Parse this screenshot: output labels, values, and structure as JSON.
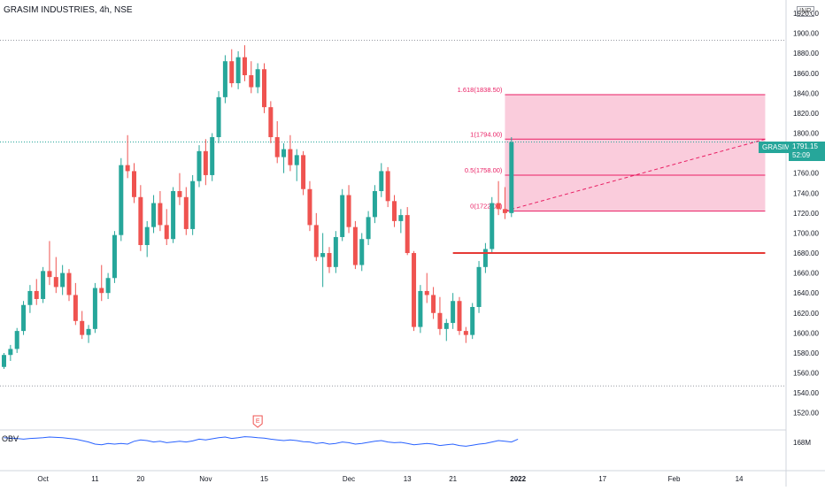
{
  "header": {
    "symbol_title": "GRASIM INDUSTRIES, 4h, NSE",
    "currency": "INR"
  },
  "colors": {
    "up": "#26a69a",
    "down": "#ef5350",
    "fib": "#e91e63",
    "fib_fill": "#f8bbd0",
    "obv": "#2962ff",
    "resistance": "#e53935"
  },
  "price_tag": {
    "ticker": "GRASIM",
    "price": "1791.15",
    "countdown": "52:09"
  },
  "indicator": {
    "label": "OBV",
    "value_label": "168M"
  },
  "event_marker": {
    "label": "E"
  },
  "chart_data": {
    "type": "candlestick",
    "title": "GRASIM INDUSTRIES, 4h, NSE",
    "ylim": [
      1510,
      1920
    ],
    "y_ticks": [
      1520,
      1540,
      1560,
      1580,
      1600,
      1620,
      1640,
      1660,
      1680,
      1700,
      1720,
      1740,
      1760,
      1780,
      1800,
      1820,
      1840,
      1860,
      1880,
      1900,
      1920
    ],
    "y_tick_labels": [
      "1520.00",
      "1540.00",
      "1560.00",
      "1580.00",
      "1600.00",
      "1620.00",
      "1640.00",
      "1660.00",
      "1680.00",
      "1700.00",
      "1720.00",
      "1740.00",
      "1760.00",
      "1780.00",
      "1800.00",
      "1820.00",
      "1840.00",
      "1860.00",
      "1880.00",
      "1900.00",
      "1920.00"
    ],
    "x_ticks": [
      {
        "label": "Oct",
        "bar": 6
      },
      {
        "label": "11",
        "bar": 14
      },
      {
        "label": "20",
        "bar": 21
      },
      {
        "label": "Nov",
        "bar": 31
      },
      {
        "label": "15",
        "bar": 40
      },
      {
        "label": "Dec",
        "bar": 53
      },
      {
        "label": "13",
        "bar": 62
      },
      {
        "label": "21",
        "bar": 69
      },
      {
        "label": "2022",
        "bar": 79
      },
      {
        "label": "17",
        "bar": 92
      },
      {
        "label": "Feb",
        "bar": 103
      },
      {
        "label": "14",
        "bar": 113
      }
    ],
    "candles": [
      [
        1566,
        1580,
        1564,
        1578
      ],
      [
        1578,
        1588,
        1572,
        1584
      ],
      [
        1584,
        1605,
        1580,
        1602
      ],
      [
        1602,
        1632,
        1598,
        1628
      ],
      [
        1628,
        1648,
        1620,
        1642
      ],
      [
        1642,
        1654,
        1628,
        1634
      ],
      [
        1634,
        1666,
        1630,
        1662
      ],
      [
        1662,
        1692,
        1648,
        1656
      ],
      [
        1656,
        1676,
        1640,
        1646
      ],
      [
        1646,
        1668,
        1638,
        1660
      ],
      [
        1660,
        1664,
        1632,
        1638
      ],
      [
        1638,
        1650,
        1608,
        1612
      ],
      [
        1612,
        1622,
        1594,
        1598
      ],
      [
        1598,
        1608,
        1590,
        1604
      ],
      [
        1604,
        1650,
        1600,
        1645
      ],
      [
        1645,
        1668,
        1632,
        1640
      ],
      [
        1640,
        1660,
        1634,
        1655
      ],
      [
        1655,
        1702,
        1650,
        1698
      ],
      [
        1698,
        1775,
        1692,
        1768
      ],
      [
        1768,
        1798,
        1755,
        1762
      ],
      [
        1762,
        1770,
        1730,
        1736
      ],
      [
        1736,
        1748,
        1682,
        1688
      ],
      [
        1688,
        1712,
        1676,
        1706
      ],
      [
        1706,
        1738,
        1700,
        1730
      ],
      [
        1730,
        1742,
        1702,
        1708
      ],
      [
        1708,
        1724,
        1688,
        1694
      ],
      [
        1694,
        1746,
        1690,
        1742
      ],
      [
        1742,
        1760,
        1728,
        1736
      ],
      [
        1736,
        1746,
        1698,
        1704
      ],
      [
        1704,
        1758,
        1698,
        1752
      ],
      [
        1752,
        1788,
        1746,
        1782
      ],
      [
        1782,
        1794,
        1748,
        1758
      ],
      [
        1758,
        1800,
        1752,
        1796
      ],
      [
        1796,
        1842,
        1790,
        1836
      ],
      [
        1836,
        1878,
        1830,
        1872
      ],
      [
        1872,
        1884,
        1846,
        1850
      ],
      [
        1850,
        1882,
        1844,
        1876
      ],
      [
        1876,
        1888,
        1852,
        1858
      ],
      [
        1858,
        1872,
        1840,
        1846
      ],
      [
        1846,
        1870,
        1840,
        1864
      ],
      [
        1864,
        1870,
        1820,
        1826
      ],
      [
        1826,
        1832,
        1790,
        1796
      ],
      [
        1796,
        1812,
        1770,
        1776
      ],
      [
        1776,
        1790,
        1760,
        1784
      ],
      [
        1784,
        1798,
        1762,
        1768
      ],
      [
        1768,
        1784,
        1752,
        1778
      ],
      [
        1778,
        1782,
        1738,
        1744
      ],
      [
        1744,
        1752,
        1702,
        1708
      ],
      [
        1708,
        1720,
        1672,
        1676
      ],
      [
        1676,
        1700,
        1646,
        1680
      ],
      [
        1680,
        1686,
        1660,
        1666
      ],
      [
        1666,
        1702,
        1660,
        1696
      ],
      [
        1696,
        1744,
        1692,
        1738
      ],
      [
        1738,
        1748,
        1700,
        1706
      ],
      [
        1706,
        1712,
        1664,
        1668
      ],
      [
        1668,
        1700,
        1662,
        1694
      ],
      [
        1694,
        1722,
        1688,
        1716
      ],
      [
        1716,
        1748,
        1710,
        1742
      ],
      [
        1742,
        1770,
        1736,
        1762
      ],
      [
        1762,
        1766,
        1726,
        1732
      ],
      [
        1732,
        1738,
        1706,
        1712
      ],
      [
        1712,
        1724,
        1700,
        1718
      ],
      [
        1718,
        1726,
        1678,
        1680
      ],
      [
        1680,
        1682,
        1602,
        1606
      ],
      [
        1606,
        1648,
        1600,
        1642
      ],
      [
        1642,
        1660,
        1630,
        1638
      ],
      [
        1638,
        1646,
        1614,
        1620
      ],
      [
        1620,
        1636,
        1598,
        1604
      ],
      [
        1604,
        1614,
        1592,
        1610
      ],
      [
        1610,
        1640,
        1604,
        1632
      ],
      [
        1632,
        1636,
        1598,
        1602
      ],
      [
        1602,
        1606,
        1590,
        1598
      ],
      [
        1598,
        1630,
        1594,
        1626
      ],
      [
        1626,
        1672,
        1620,
        1666
      ],
      [
        1666,
        1690,
        1660,
        1684
      ],
      [
        1684,
        1736,
        1680,
        1730
      ],
      [
        1730,
        1752,
        1718,
        1724
      ],
      [
        1724,
        1746,
        1714,
        1720
      ],
      [
        1720,
        1796,
        1716,
        1791
      ]
    ],
    "fib_levels": [
      {
        "ratio_label": "0(1722.00)",
        "price": 1722.0
      },
      {
        "ratio_label": "0.5(1758.00)",
        "price": 1758.0
      },
      {
        "ratio_label": "1(1794.00)",
        "price": 1794.0
      },
      {
        "ratio_label": "1.618(1838.50)",
        "price": 1838.5
      }
    ],
    "fib_range_bars": [
      77,
      117
    ],
    "fib_trend_line": {
      "from": [
        77,
        1722.0
      ],
      "to": [
        117,
        1794.0
      ]
    },
    "resistance_line": {
      "price": 1680,
      "from_bar": 69,
      "to_bar": 117
    },
    "dotted_levels": [
      1893,
      1547
    ],
    "current_price": 1791.15,
    "event_bar": 39,
    "obv": [
      0.88,
      0.87,
      0.86,
      0.84,
      0.86,
      0.87,
      0.88,
      0.9,
      0.89,
      0.88,
      0.86,
      0.84,
      0.8,
      0.76,
      0.7,
      0.68,
      0.72,
      0.7,
      0.72,
      0.7,
      0.78,
      0.82,
      0.8,
      0.76,
      0.78,
      0.74,
      0.76,
      0.78,
      0.76,
      0.79,
      0.84,
      0.82,
      0.85,
      0.88,
      0.9,
      0.86,
      0.88,
      0.91,
      0.9,
      0.88,
      0.87,
      0.84,
      0.82,
      0.8,
      0.82,
      0.8,
      0.77,
      0.76,
      0.72,
      0.74,
      0.7,
      0.72,
      0.76,
      0.74,
      0.7,
      0.72,
      0.75,
      0.78,
      0.8,
      0.76,
      0.74,
      0.75,
      0.72,
      0.68,
      0.7,
      0.72,
      0.7,
      0.66,
      0.68,
      0.7,
      0.66,
      0.64,
      0.67,
      0.7,
      0.72,
      0.76,
      0.8,
      0.78,
      0.76,
      0.84
    ]
  }
}
